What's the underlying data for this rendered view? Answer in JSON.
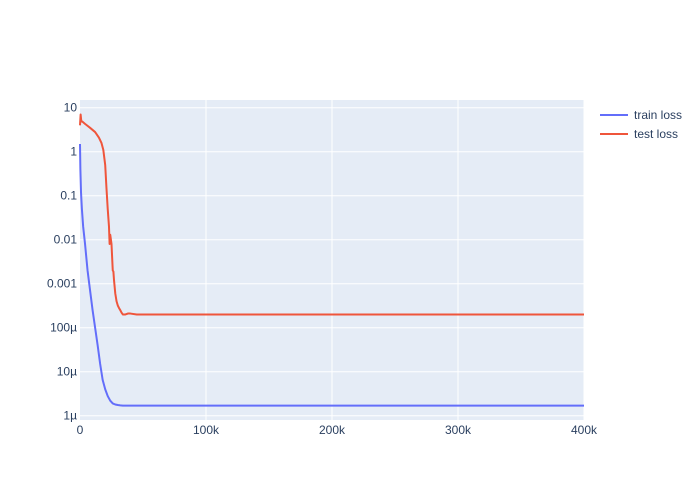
{
  "chart_data": {
    "type": "line",
    "title": "",
    "xlabel": "",
    "ylabel": "",
    "y_scale": "log",
    "xlim": [
      0,
      400000
    ],
    "ylim": [
      8e-07,
      15
    ],
    "grid": true,
    "legend_position": "top-right",
    "x_ticks": [
      {
        "value": 0,
        "label": "0"
      },
      {
        "value": 100000,
        "label": "100k"
      },
      {
        "value": 200000,
        "label": "200k"
      },
      {
        "value": 300000,
        "label": "300k"
      },
      {
        "value": 400000,
        "label": "400k"
      }
    ],
    "y_ticks": [
      {
        "value": 10,
        "label": "10"
      },
      {
        "value": 1,
        "label": "1"
      },
      {
        "value": 0.1,
        "label": "0.1"
      },
      {
        "value": 0.01,
        "label": "0.01"
      },
      {
        "value": 0.001,
        "label": "0.001"
      },
      {
        "value": 0.0001,
        "label": "100µ"
      },
      {
        "value": 1e-05,
        "label": "10µ"
      },
      {
        "value": 1e-06,
        "label": "1µ"
      }
    ],
    "series": [
      {
        "name": "train loss",
        "color": "#636efa",
        "x": [
          0,
          300,
          800,
          1500,
          2500,
          4000,
          6000,
          8000,
          10000,
          12000,
          14000,
          16000,
          18000,
          20000,
          22000,
          24000,
          26000,
          28000,
          30000,
          32000,
          34000,
          36000,
          40000,
          50000,
          60000,
          80000,
          100000,
          150000,
          200000,
          300000,
          400000
        ],
        "y": [
          1.5,
          0.4,
          0.12,
          0.05,
          0.02,
          0.008,
          0.002,
          0.0007,
          0.00025,
          0.0001,
          4e-05,
          1.5e-05,
          6.5e-06,
          4e-06,
          2.8e-06,
          2.2e-06,
          1.9e-06,
          1.8e-06,
          1.75e-06,
          1.72e-06,
          1.7e-06,
          1.7e-06,
          1.7e-06,
          1.7e-06,
          1.7e-06,
          1.7e-06,
          1.7e-06,
          1.7e-06,
          1.7e-06,
          1.7e-06,
          1.7e-06
        ]
      },
      {
        "name": "test loss",
        "color": "#ef553b",
        "x": [
          0,
          500,
          1000,
          2000,
          4000,
          8000,
          12000,
          15000,
          17000,
          18500,
          20000,
          21000,
          22000,
          23000,
          23500,
          24000,
          25000,
          26000,
          26500,
          27000,
          28000,
          29000,
          30000,
          31000,
          32000,
          33000,
          34000,
          35000,
          36000,
          38000,
          40000,
          45000,
          60000,
          100000,
          200000,
          300000,
          400000
        ],
        "y": [
          4,
          7,
          5,
          4.8,
          4.3,
          3.5,
          2.8,
          2.1,
          1.6,
          1.1,
          0.5,
          0.15,
          0.05,
          0.02,
          0.008,
          0.013,
          0.008,
          0.002,
          0.0019,
          0.0012,
          0.0006,
          0.0004,
          0.00032,
          0.00028,
          0.00025,
          0.00022,
          0.0002,
          0.0002,
          0.0002,
          0.00021,
          0.00021,
          0.0002,
          0.0002,
          0.0002,
          0.0002,
          0.0002,
          0.0002
        ]
      }
    ]
  }
}
